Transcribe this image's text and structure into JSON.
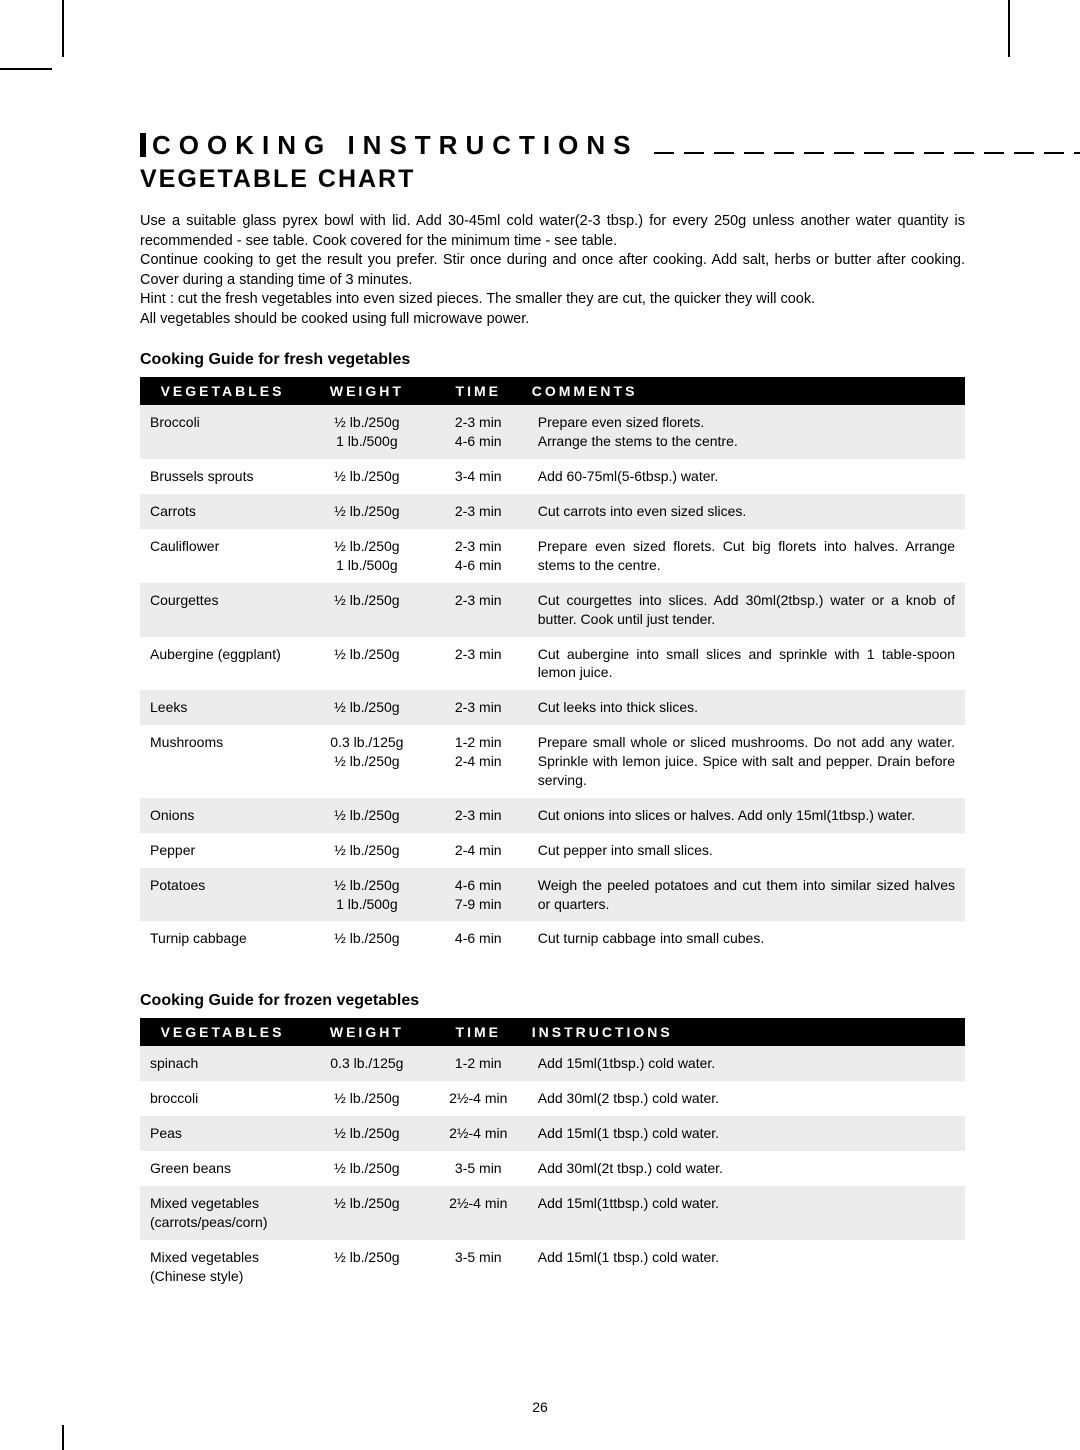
{
  "section_heading": "COOKING INSTRUCTIONS",
  "subtitle": "VEGETABLE CHART",
  "intro": "Use a suitable glass pyrex bowl with lid. Add 30-45ml cold water(2-3 tbsp.) for every 250g unless another water quantity is recommended - see table. Cook covered for the minimum time - see table.\nContinue cooking to get the result you prefer. Stir once during and once after cooking. Add salt, herbs or butter after cooking. Cover during a standing time of 3 minutes.\nHint : cut the fresh vegetables into even sized pieces. The smaller they are cut, the quicker they will cook.\nAll vegetables should be cooked using full microwave power.",
  "fresh_heading": "Cooking Guide for fresh vegetables",
  "frozen_heading": "Cooking Guide for frozen vegetables",
  "fresh_headers": {
    "veg": "VEGETABLES",
    "weight": "WEIGHT",
    "time": "TIME",
    "comments": "COMMENTS"
  },
  "frozen_headers": {
    "veg": "VEGETABLES",
    "weight": "WEIGHT",
    "time": "TIME",
    "instructions": "INSTRUCTIONS"
  },
  "fresh_rows": [
    {
      "veg": "Broccoli",
      "weight": "½ lb./250g\n1 lb./500g",
      "time": "2-3 min\n4-6 min",
      "comments": "Prepare even sized florets.\nArrange the stems to the centre."
    },
    {
      "veg": "Brussels sprouts",
      "weight": "½ lb./250g",
      "time": "3-4 min",
      "comments": "Add 60-75ml(5-6tbsp.) water."
    },
    {
      "veg": "Carrots",
      "weight": "½ lb./250g",
      "time": "2-3 min",
      "comments": "Cut carrots into even sized slices."
    },
    {
      "veg": "Cauliflower",
      "weight": "½ lb./250g\n1 lb./500g",
      "time": "2-3 min\n4-6 min",
      "comments": "Prepare even sized florets. Cut big florets into halves. Arrange stems to the centre."
    },
    {
      "veg": "Courgettes",
      "weight": "½ lb./250g",
      "time": "2-3 min",
      "comments": "Cut courgettes into slices. Add 30ml(2tbsp.) water or a knob of butter. Cook until just tender."
    },
    {
      "veg": "Aubergine (eggplant)",
      "weight": "½ lb./250g",
      "time": "2-3 min",
      "comments": "Cut aubergine into small slices and sprinkle with 1 table-spoon lemon juice."
    },
    {
      "veg": "Leeks",
      "weight": "½ lb./250g",
      "time": "2-3 min",
      "comments": "Cut leeks into thick slices."
    },
    {
      "veg": "Mushrooms",
      "weight": "0.3 lb./125g\n½ lb./250g",
      "time": "1-2 min\n2-4 min",
      "comments": "Prepare small whole or sliced mushrooms. Do not add any water. Sprinkle with lemon juice. Spice with salt and pepper. Drain before serving."
    },
    {
      "veg": "Onions",
      "weight": "½ lb./250g",
      "time": "2-3 min",
      "comments": "Cut onions into slices or halves. Add only 15ml(1tbsp.) water."
    },
    {
      "veg": "Pepper",
      "weight": "½ lb./250g",
      "time": "2-4 min",
      "comments": "Cut pepper into small slices."
    },
    {
      "veg": "Potatoes",
      "weight": "½ lb./250g\n1 lb./500g",
      "time": "4-6 min\n7-9 min",
      "comments": "Weigh the peeled potatoes and cut them into similar sized halves or quarters."
    },
    {
      "veg": "Turnip cabbage",
      "weight": "½ lb./250g",
      "time": "4-6 min",
      "comments": "Cut turnip cabbage into small cubes."
    }
  ],
  "frozen_rows": [
    {
      "veg": "spinach",
      "weight": "0.3 lb./125g",
      "time": "1-2 min",
      "instructions": "Add 15ml(1tbsp.) cold water."
    },
    {
      "veg": "broccoli",
      "weight": "½ lb./250g",
      "time": "2½-4 min",
      "instructions": "Add 30ml(2 tbsp.) cold water."
    },
    {
      "veg": "Peas",
      "weight": "½ lb./250g",
      "time": "2½-4 min",
      "instructions": "Add 15ml(1 tbsp.) cold water."
    },
    {
      "veg": "Green beans",
      "weight": "½ lb./250g",
      "time": "3-5 min",
      "instructions": "Add 30ml(2t tbsp.) cold water."
    },
    {
      "veg": "Mixed vegetables (carrots/peas/corn)",
      "weight": "½ lb./250g",
      "time": "2½-4 min",
      "instructions": "Add 15ml(1ttbsp.) cold water."
    },
    {
      "veg": "Mixed vegetables (Chinese style)",
      "weight": "½ lb./250g",
      "time": "3-5 min",
      "instructions": "Add 15ml(1 tbsp.) cold water."
    }
  ],
  "page_number": "26"
}
